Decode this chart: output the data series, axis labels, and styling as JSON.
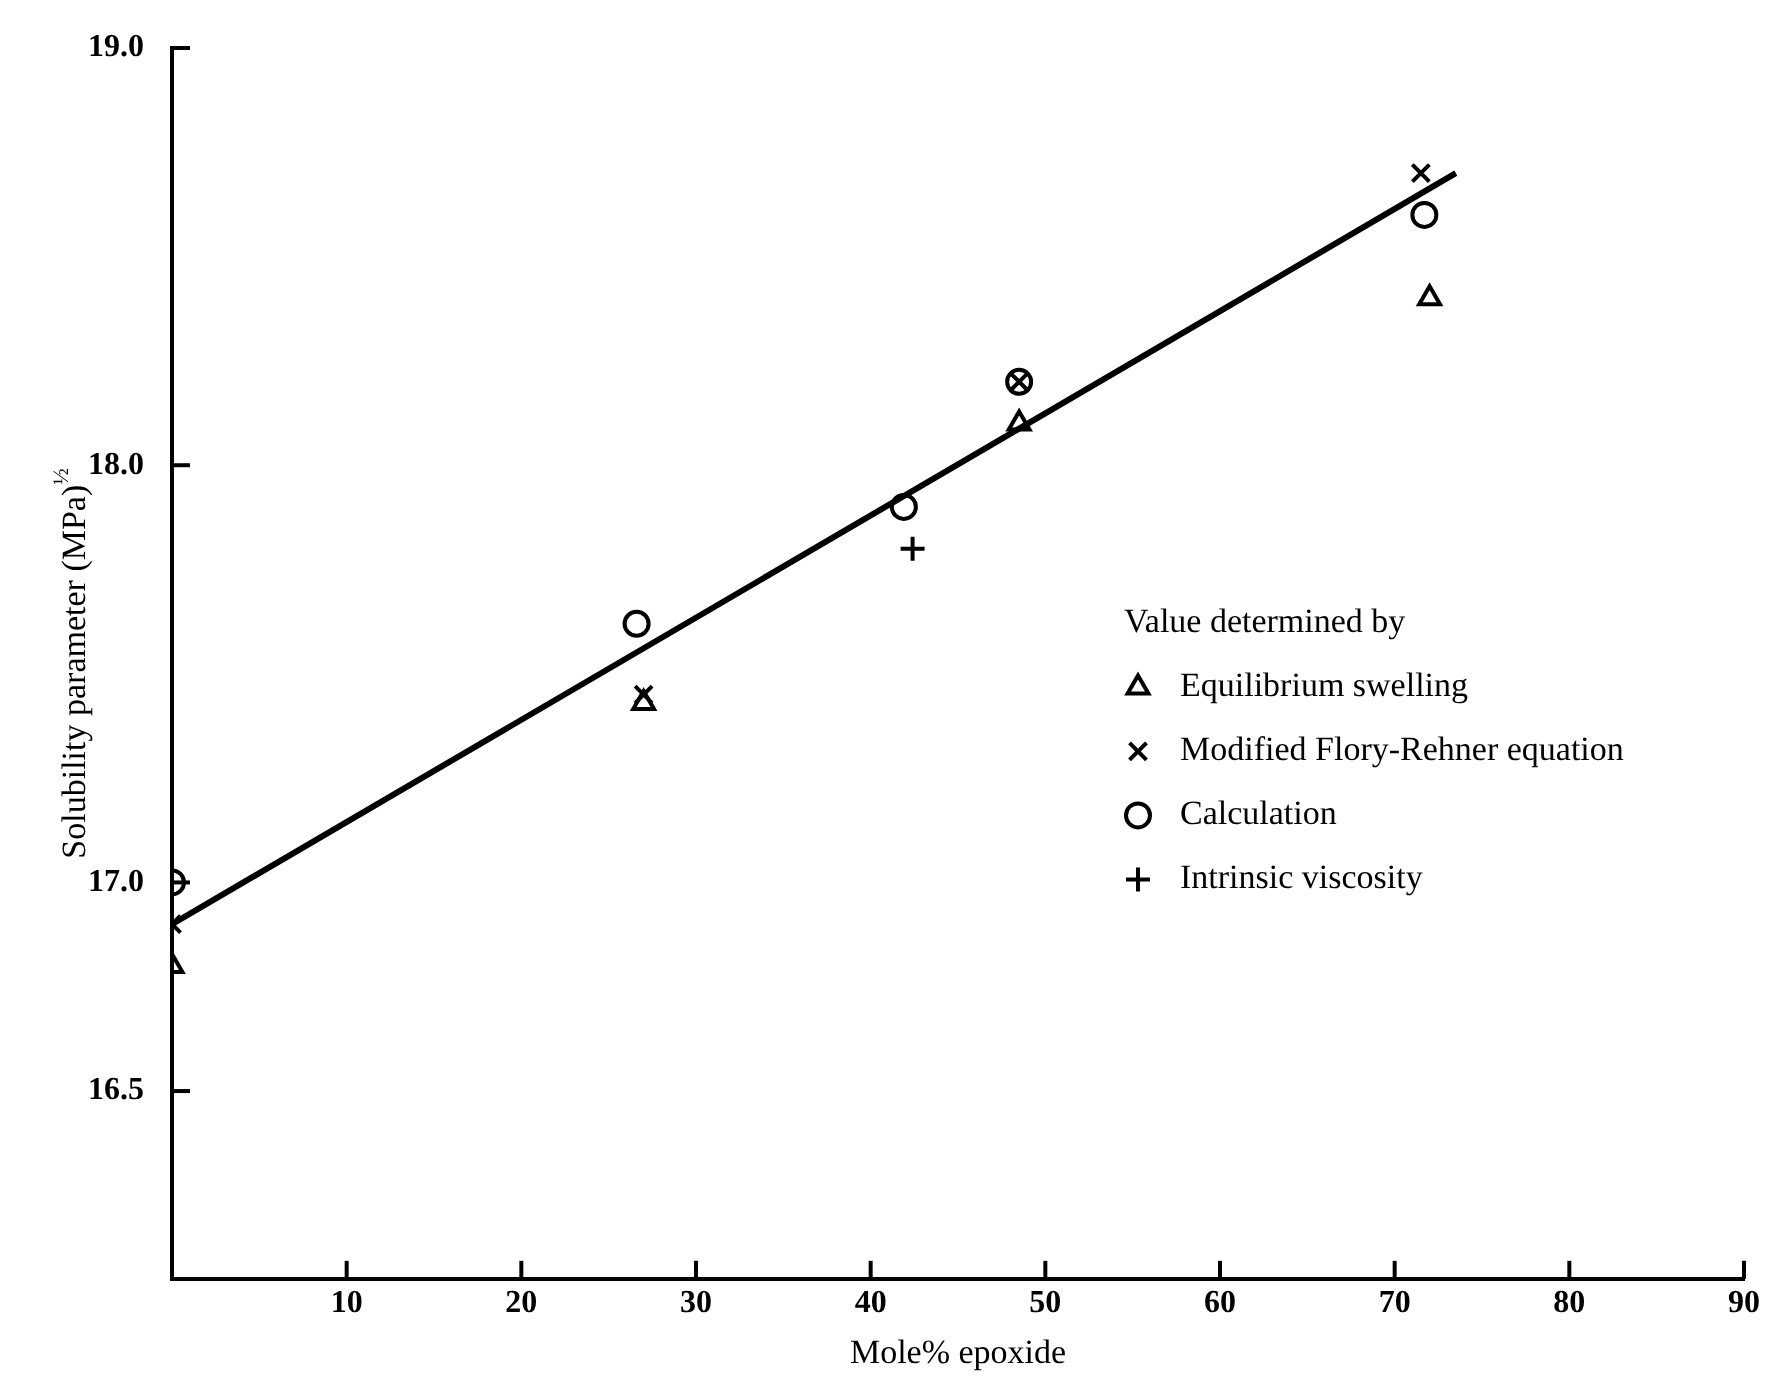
{
  "chart_data": {
    "type": "scatter",
    "xlabel": "Mole% epoxide",
    "ylabel": "Solubility parameter (MPa)$^{½}$",
    "legend_title": "Value determined by",
    "legend": "right",
    "grid": false,
    "xlim": [
      0,
      90
    ],
    "xticks": [
      10,
      20,
      30,
      40,
      50,
      60,
      70,
      80,
      90
    ],
    "ylim": [
      16.05,
      19.0
    ],
    "yticks": [
      {
        "value": 16.5,
        "label": "16.5"
      },
      {
        "value": 17.0,
        "label": "17.0"
      },
      {
        "value": 18.0,
        "label": "18.0"
      },
      {
        "value": 19.0,
        "label": "19.0"
      }
    ],
    "series": [
      {
        "name": "Equilibrium swelling",
        "marker": "triangle",
        "color": "#000000",
        "x": [
          0,
          27,
          48.5,
          72
        ],
        "values": [
          16.8,
          17.43,
          18.1,
          18.4
        ]
      },
      {
        "name": "Modified Flory-Rehner equation",
        "marker": "x",
        "color": "#000000",
        "x": [
          0,
          27,
          48.5,
          71.5
        ],
        "values": [
          16.9,
          17.45,
          18.2,
          18.7
        ]
      },
      {
        "name": "Calculation",
        "marker": "circle",
        "color": "#000000",
        "x": [
          0,
          26.6,
          41.9,
          48.5,
          71.7
        ],
        "values": [
          17.0,
          17.62,
          17.9,
          18.2,
          18.6
        ]
      },
      {
        "name": "Intrinsic viscosity",
        "marker": "cross",
        "color": "#000000",
        "x": [
          42.4
        ],
        "values": [
          17.8
        ]
      },
      {
        "type": "line",
        "marker": "none",
        "line_style": "solid",
        "color": "#000000",
        "x": [
          0,
          73.5
        ],
        "values": [
          16.9,
          18.7
        ]
      }
    ]
  }
}
